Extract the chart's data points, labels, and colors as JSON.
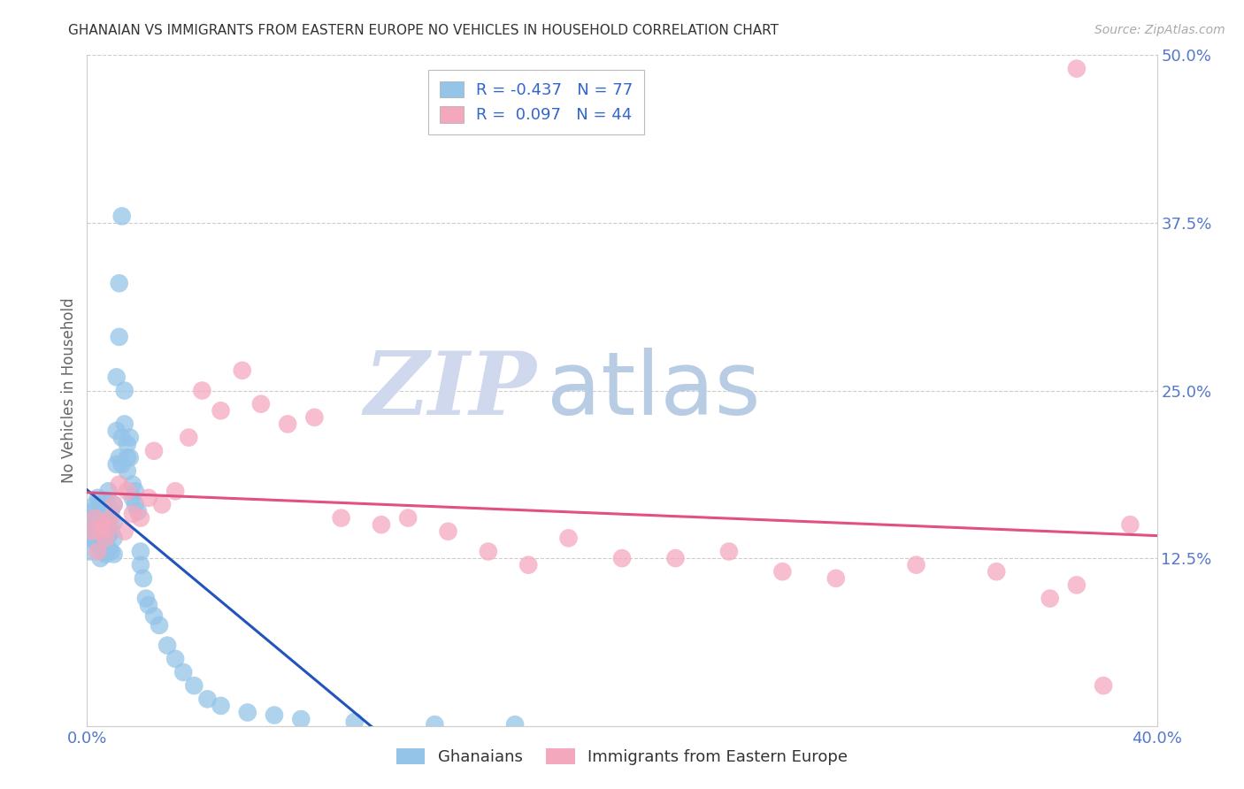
{
  "title": "GHANAIAN VS IMMIGRANTS FROM EASTERN EUROPE NO VEHICLES IN HOUSEHOLD CORRELATION CHART",
  "source": "Source: ZipAtlas.com",
  "ylabel": "No Vehicles in Household",
  "x_min": 0.0,
  "x_max": 0.4,
  "y_min": 0.0,
  "y_max": 0.5,
  "x_ticks": [
    0.0,
    0.05,
    0.1,
    0.15,
    0.2,
    0.25,
    0.3,
    0.35,
    0.4
  ],
  "x_tick_labels": [
    "0.0%",
    "",
    "",
    "",
    "",
    "",
    "",
    "",
    "40.0%"
  ],
  "y_ticks": [
    0.0,
    0.125,
    0.25,
    0.375,
    0.5
  ],
  "y_tick_labels_right": [
    "",
    "12.5%",
    "25.0%",
    "37.5%",
    "50.0%"
  ],
  "ghanaian_R": -0.437,
  "ghanaian_N": 77,
  "eastern_europe_R": 0.097,
  "eastern_europe_N": 44,
  "ghanaian_color": "#94c4e8",
  "eastern_europe_color": "#f4a8be",
  "ghanaian_line_color": "#2255bb",
  "eastern_europe_line_color": "#e05080",
  "watermark_zip": "ZIP",
  "watermark_atlas": "atlas",
  "ghanaian_x": [
    0.001,
    0.001,
    0.002,
    0.002,
    0.002,
    0.003,
    0.003,
    0.003,
    0.004,
    0.004,
    0.004,
    0.004,
    0.005,
    0.005,
    0.005,
    0.005,
    0.005,
    0.006,
    0.006,
    0.006,
    0.006,
    0.007,
    0.007,
    0.007,
    0.007,
    0.007,
    0.008,
    0.008,
    0.008,
    0.008,
    0.009,
    0.009,
    0.009,
    0.01,
    0.01,
    0.01,
    0.01,
    0.011,
    0.011,
    0.011,
    0.012,
    0.012,
    0.012,
    0.013,
    0.013,
    0.013,
    0.014,
    0.014,
    0.015,
    0.015,
    0.015,
    0.016,
    0.016,
    0.017,
    0.017,
    0.018,
    0.018,
    0.019,
    0.02,
    0.02,
    0.021,
    0.022,
    0.023,
    0.025,
    0.027,
    0.03,
    0.033,
    0.036,
    0.04,
    0.045,
    0.05,
    0.06,
    0.07,
    0.08,
    0.1,
    0.13,
    0.16
  ],
  "ghanaian_y": [
    0.13,
    0.14,
    0.145,
    0.155,
    0.16,
    0.14,
    0.15,
    0.165,
    0.135,
    0.145,
    0.155,
    0.17,
    0.125,
    0.138,
    0.148,
    0.158,
    0.165,
    0.13,
    0.142,
    0.152,
    0.162,
    0.128,
    0.138,
    0.148,
    0.158,
    0.168,
    0.132,
    0.142,
    0.152,
    0.175,
    0.13,
    0.145,
    0.16,
    0.128,
    0.14,
    0.152,
    0.165,
    0.195,
    0.22,
    0.26,
    0.2,
    0.29,
    0.33,
    0.195,
    0.215,
    0.38,
    0.225,
    0.25,
    0.2,
    0.21,
    0.19,
    0.2,
    0.215,
    0.17,
    0.18,
    0.165,
    0.175,
    0.16,
    0.12,
    0.13,
    0.11,
    0.095,
    0.09,
    0.082,
    0.075,
    0.06,
    0.05,
    0.04,
    0.03,
    0.02,
    0.015,
    0.01,
    0.008,
    0.005,
    0.003,
    0.001,
    0.001
  ],
  "eastern_europe_x": [
    0.002,
    0.003,
    0.004,
    0.005,
    0.006,
    0.007,
    0.008,
    0.009,
    0.01,
    0.012,
    0.014,
    0.015,
    0.017,
    0.02,
    0.023,
    0.025,
    0.028,
    0.033,
    0.038,
    0.043,
    0.05,
    0.058,
    0.065,
    0.075,
    0.085,
    0.095,
    0.11,
    0.12,
    0.135,
    0.15,
    0.165,
    0.18,
    0.2,
    0.22,
    0.24,
    0.26,
    0.28,
    0.31,
    0.34,
    0.36,
    0.37,
    0.38,
    0.39,
    0.37
  ],
  "eastern_europe_y": [
    0.145,
    0.155,
    0.13,
    0.145,
    0.15,
    0.14,
    0.148,
    0.155,
    0.165,
    0.18,
    0.145,
    0.175,
    0.158,
    0.155,
    0.17,
    0.205,
    0.165,
    0.175,
    0.215,
    0.25,
    0.235,
    0.265,
    0.24,
    0.225,
    0.23,
    0.155,
    0.15,
    0.155,
    0.145,
    0.13,
    0.12,
    0.14,
    0.125,
    0.125,
    0.13,
    0.115,
    0.11,
    0.12,
    0.115,
    0.095,
    0.105,
    0.03,
    0.15,
    0.49
  ]
}
